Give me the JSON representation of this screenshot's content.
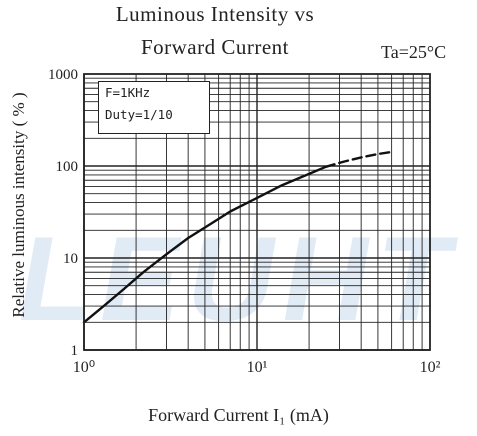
{
  "chart_data": {
    "type": "line",
    "title": "Luminous Intensity vs",
    "subtitle": "Forward Current",
    "condition": "Ta=25°C",
    "xlabel": "Forward Current   I₁ (mA)",
    "ylabel": "Relative luminous intensity ( % )",
    "x_scale": "log",
    "y_scale": "log",
    "xlim": [
      1,
      100
    ],
    "ylim": [
      1,
      1000
    ],
    "x_ticks": [
      "10⁰",
      "10¹",
      "10²"
    ],
    "y_ticks": [
      "1",
      "10",
      "100",
      "1000"
    ],
    "grid": true,
    "legend_box": [
      "F=1KHz",
      "Duty=1/10"
    ],
    "series": [
      {
        "style": "solid",
        "x": [
          1.0,
          1.3,
          1.7,
          2.2,
          3.0,
          4.0,
          5.5,
          7.0,
          10.0,
          14.0,
          20.0,
          25.0
        ],
        "y": [
          2.0,
          3.0,
          4.6,
          7.0,
          11.0,
          16.5,
          24.0,
          32.0,
          45.0,
          62.0,
          82.0,
          98.0
        ]
      },
      {
        "style": "dashed",
        "x": [
          25.0,
          32.0,
          40.0,
          50.0,
          60.0
        ],
        "y": [
          98.0,
          112.0,
          124.0,
          135.0,
          142.0
        ]
      }
    ]
  },
  "watermark": "LEUHT"
}
